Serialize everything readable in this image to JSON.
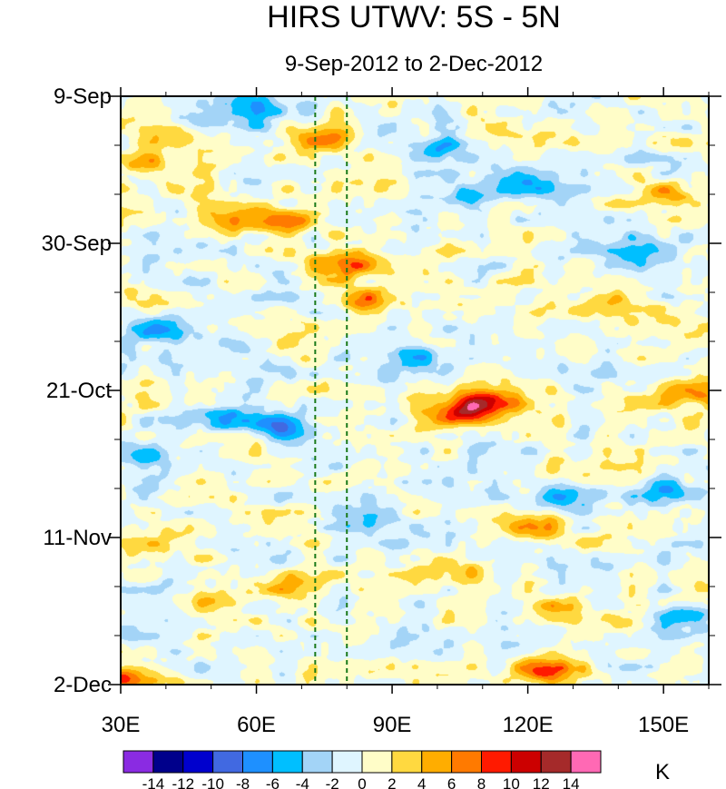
{
  "chart_data": {
    "type": "heatmap",
    "title": "HIRS UTWV: 5S - 5N",
    "subtitle": "9-Sep-2012 to 2-Dec-2012",
    "x_axis": {
      "range": [
        30,
        160
      ],
      "ticks": [
        30,
        60,
        90,
        120,
        150
      ],
      "tick_labels": [
        "30E",
        "60E",
        "90E",
        "120E",
        "150E"
      ],
      "minor_step": 10
    },
    "y_axis": {
      "range_days": [
        0,
        84
      ],
      "ticks_days": [
        0,
        21,
        42,
        63,
        84
      ],
      "tick_labels": [
        "9-Sep",
        "30-Sep",
        "21-Oct",
        "11-Nov",
        "2-Dec"
      ],
      "minor_step_days": 7
    },
    "reference_lines_lon": [
      73,
      80
    ],
    "colorbar": {
      "unit": "K",
      "levels": [
        -14,
        -12,
        -10,
        -8,
        -6,
        -4,
        -2,
        0,
        2,
        4,
        6,
        8,
        10,
        12,
        14
      ],
      "level_labels": [
        "-14",
        "-12",
        "-10",
        "-8",
        "-6",
        "-4",
        "-2",
        "0",
        "2",
        "4",
        "6",
        "8",
        "10",
        "12",
        "14"
      ],
      "colors": [
        "#8a2be2",
        "#00008b",
        "#0000cd",
        "#4169e1",
        "#1e90ff",
        "#00bfff",
        "#a3d4f7",
        "#dff5ff",
        "#fffdc8",
        "#ffd940",
        "#ffad00",
        "#ff7a00",
        "#ff1a00",
        "#cc0000",
        "#a52a2a",
        "#ff69b4"
      ]
    },
    "anomaly_features": [
      {
        "lon": 36,
        "day": 10,
        "value": 5
      },
      {
        "lon": 42,
        "day": 6,
        "value": 4
      },
      {
        "lon": 55,
        "day": 17.5,
        "value": 6
      },
      {
        "lon": 66,
        "day": 18,
        "value": 6
      },
      {
        "lon": 75,
        "day": 6,
        "value": 5
      },
      {
        "lon": 80,
        "day": 24,
        "value": 9
      },
      {
        "lon": 84,
        "day": 29,
        "value": 6
      },
      {
        "lon": 106,
        "day": 45,
        "value": 11
      },
      {
        "lon": 112,
        "day": 43,
        "value": 7
      },
      {
        "lon": 140,
        "day": 30,
        "value": 5
      },
      {
        "lon": 150,
        "day": 14,
        "value": 5
      },
      {
        "lon": 158,
        "day": 42,
        "value": 8
      },
      {
        "lon": 121,
        "day": 61.5,
        "value": 8
      },
      {
        "lon": 50,
        "day": 72,
        "value": 6
      },
      {
        "lon": 38,
        "day": 64,
        "value": 4
      },
      {
        "lon": 70,
        "day": 70,
        "value": 4
      },
      {
        "lon": 124,
        "day": 82,
        "value": 9
      },
      {
        "lon": 32,
        "day": 83,
        "value": 7
      },
      {
        "lon": 127,
        "day": 73,
        "value": 5
      },
      {
        "lon": 105,
        "day": 68,
        "value": 4
      },
      {
        "lon": 60,
        "day": 2,
        "value": -7
      },
      {
        "lon": 48,
        "day": 3,
        "value": -5
      },
      {
        "lon": 100,
        "day": 8,
        "value": -6
      },
      {
        "lon": 120,
        "day": 13,
        "value": -6
      },
      {
        "lon": 105,
        "day": 14,
        "value": -5
      },
      {
        "lon": 145,
        "day": 22,
        "value": -7
      },
      {
        "lon": 38,
        "day": 33.5,
        "value": -8
      },
      {
        "lon": 65,
        "day": 47,
        "value": -7
      },
      {
        "lon": 50,
        "day": 46,
        "value": -6
      },
      {
        "lon": 85,
        "day": 60,
        "value": -6
      },
      {
        "lon": 130,
        "day": 57,
        "value": -6
      },
      {
        "lon": 150,
        "day": 56,
        "value": -5
      },
      {
        "lon": 95,
        "day": 37,
        "value": -5
      },
      {
        "lon": 155,
        "day": 74,
        "value": -6
      },
      {
        "lon": 130,
        "day": 39,
        "value": -4
      },
      {
        "lon": 35,
        "day": 52,
        "value": -5
      }
    ]
  }
}
